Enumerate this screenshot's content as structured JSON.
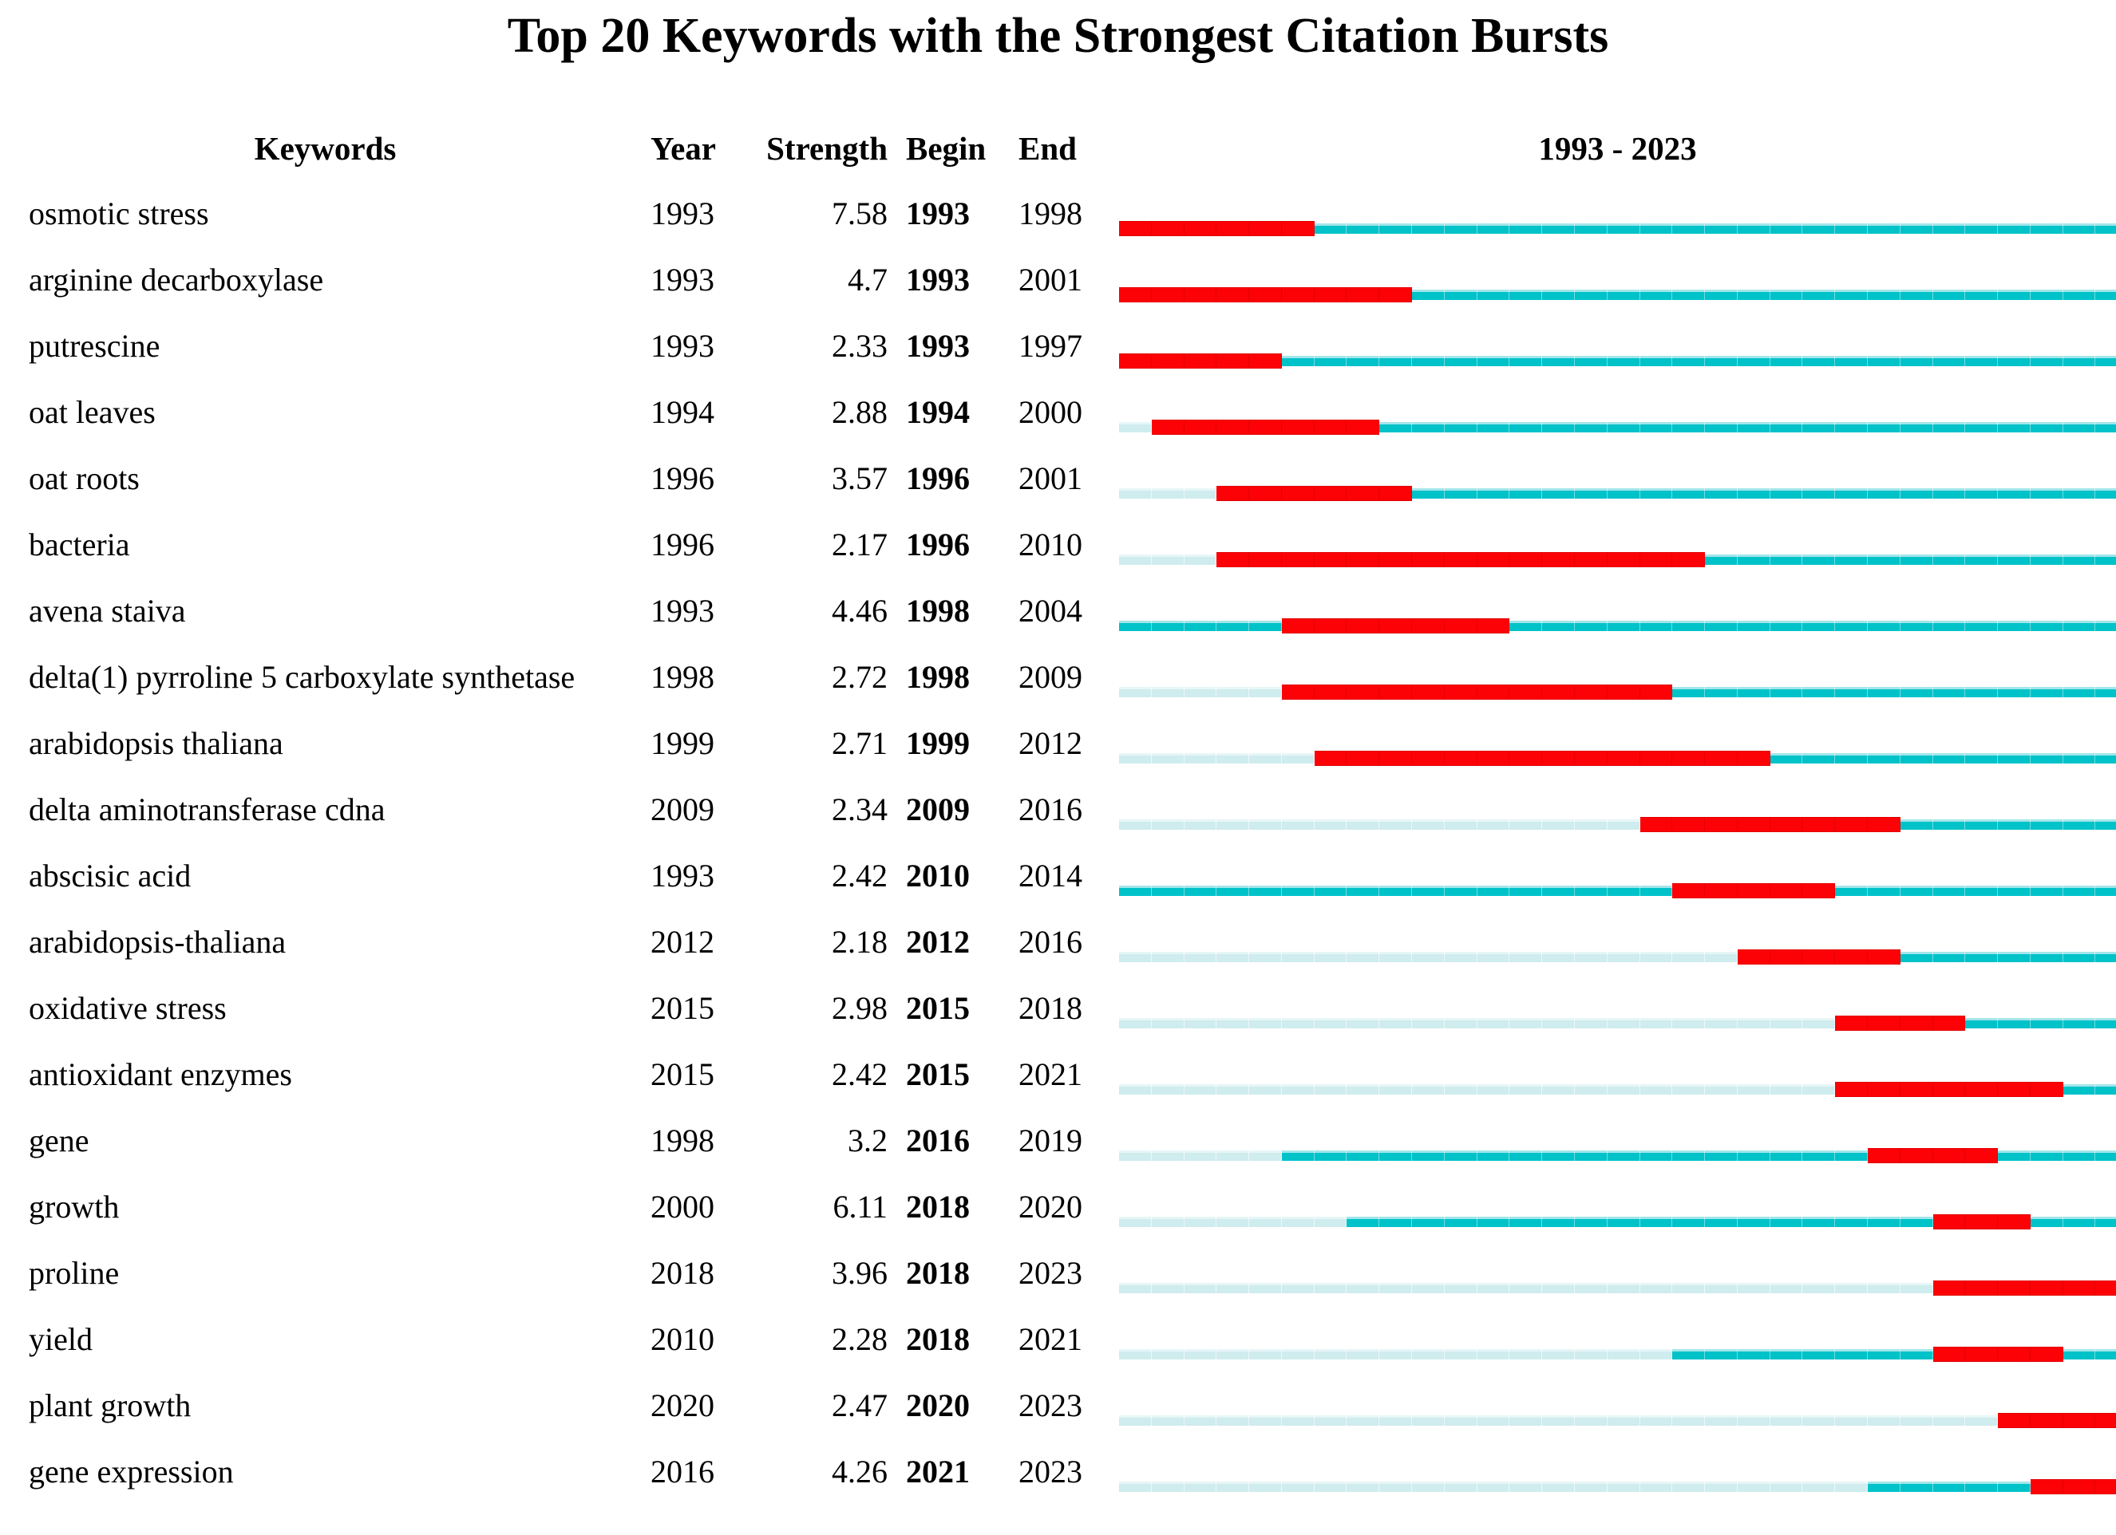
{
  "title": "Top 20 Keywords with the Strongest Citation Bursts",
  "header": {
    "keywords": "Keywords",
    "year": "Year",
    "strength": "Strength",
    "begin": "Begin",
    "end": "End",
    "timeline": "1993 - 2023"
  },
  "chart_data": {
    "type": "gantt-burst-timeline",
    "x_range": [
      1993,
      2023
    ],
    "legend": {
      "burst_color_meaning": "burst period (Begin-End)",
      "active_color_meaning": "years after first appearance, no burst",
      "inactive_color_meaning": "years before keyword first appeared"
    },
    "colors": {
      "burst": "#fc0105",
      "active": "#00c2c9",
      "active_highlight": "#a2e6ea",
      "inactive": "#cfecee",
      "inactive_highlight": "#e7f6f7"
    },
    "rows": [
      {
        "keyword": "osmotic stress",
        "year": 1993,
        "strength": "7.58",
        "begin": 1993,
        "end": 1998
      },
      {
        "keyword": "arginine decarboxylase",
        "year": 1993,
        "strength": "4.7",
        "begin": 1993,
        "end": 2001
      },
      {
        "keyword": "putrescine",
        "year": 1993,
        "strength": "2.33",
        "begin": 1993,
        "end": 1997
      },
      {
        "keyword": "oat leaves",
        "year": 1994,
        "strength": "2.88",
        "begin": 1994,
        "end": 2000
      },
      {
        "keyword": "oat roots",
        "year": 1996,
        "strength": "3.57",
        "begin": 1996,
        "end": 2001
      },
      {
        "keyword": "bacteria",
        "year": 1996,
        "strength": "2.17",
        "begin": 1996,
        "end": 2010
      },
      {
        "keyword": "avena staiva",
        "year": 1993,
        "strength": "4.46",
        "begin": 1998,
        "end": 2004
      },
      {
        "keyword": "delta(1) pyrroline 5 carboxylate synthetase",
        "year": 1998,
        "strength": "2.72",
        "begin": 1998,
        "end": 2009
      },
      {
        "keyword": "arabidopsis thaliana",
        "year": 1999,
        "strength": "2.71",
        "begin": 1999,
        "end": 2012
      },
      {
        "keyword": "delta aminotransferase cdna",
        "year": 2009,
        "strength": "2.34",
        "begin": 2009,
        "end": 2016
      },
      {
        "keyword": "abscisic acid",
        "year": 1993,
        "strength": "2.42",
        "begin": 2010,
        "end": 2014
      },
      {
        "keyword": "arabidopsis-thaliana",
        "year": 2012,
        "strength": "2.18",
        "begin": 2012,
        "end": 2016
      },
      {
        "keyword": "oxidative stress",
        "year": 2015,
        "strength": "2.98",
        "begin": 2015,
        "end": 2018
      },
      {
        "keyword": "antioxidant enzymes",
        "year": 2015,
        "strength": "2.42",
        "begin": 2015,
        "end": 2021
      },
      {
        "keyword": "gene",
        "year": 1998,
        "strength": "3.2",
        "begin": 2016,
        "end": 2019
      },
      {
        "keyword": "growth",
        "year": 2000,
        "strength": "6.11",
        "begin": 2018,
        "end": 2020
      },
      {
        "keyword": "proline",
        "year": 2018,
        "strength": "3.96",
        "begin": 2018,
        "end": 2023
      },
      {
        "keyword": "yield",
        "year": 2010,
        "strength": "2.28",
        "begin": 2018,
        "end": 2021
      },
      {
        "keyword": "plant growth",
        "year": 2020,
        "strength": "2.47",
        "begin": 2020,
        "end": 2023
      },
      {
        "keyword": "gene expression",
        "year": 2016,
        "strength": "4.26",
        "begin": 2021,
        "end": 2023
      }
    ]
  }
}
